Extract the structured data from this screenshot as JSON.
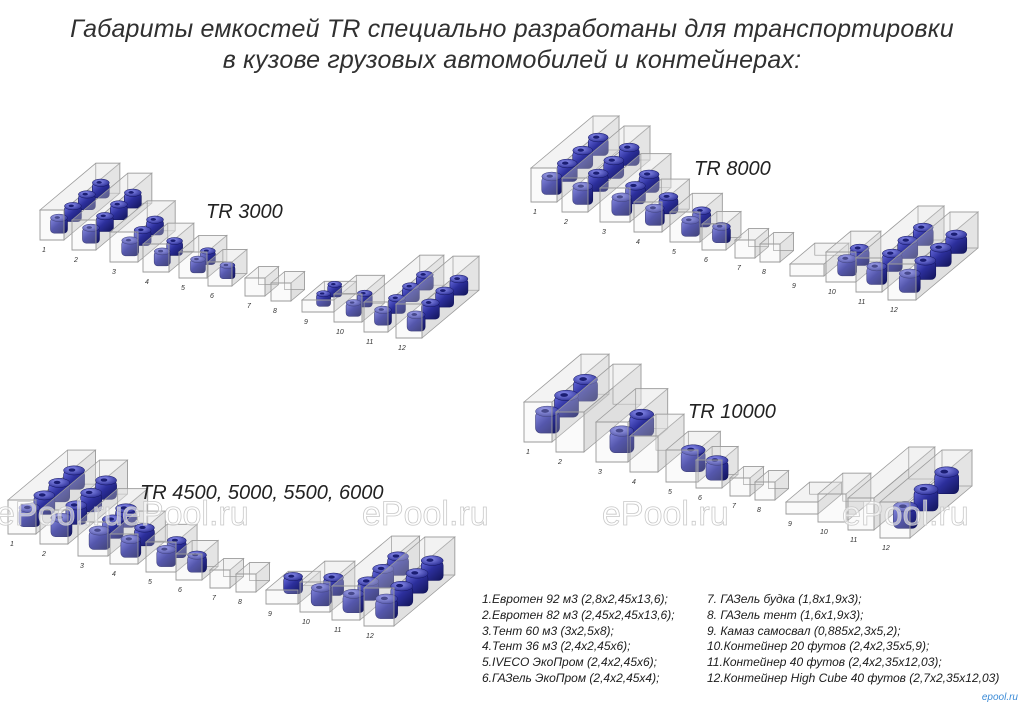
{
  "headline": {
    "line1": "Габариты емкостей TR специально разработаны для транспортировки",
    "line2": "в кузове грузовых автомобилей и контейнерах:"
  },
  "groups": [
    {
      "label": "TR 3000"
    },
    {
      "label": "TR 8000"
    },
    {
      "label": "TR 10000"
    },
    {
      "label": "TR 4500, 5000, 5500, 6000"
    }
  ],
  "vehicle_numbers": [
    "1",
    "2",
    "3",
    "4",
    "5",
    "6",
    "7",
    "8",
    "9",
    "10",
    "11",
    "12"
  ],
  "legend": {
    "left": [
      "1.Евротен 92 м3 (2,8x2,45x13,6);",
      "2.Евротен 82 м3 (2,45x2,45x13,6);",
      "3.Тент 60 м3 (3x2,5x8);",
      "4.Тент 36 м3 (2,4x2,45x6);",
      "5.IVECO ЭкоПром (2,4x2,45x6);",
      "6.ГАЗель ЭкоПром (2,4x2,45x4);"
    ],
    "right": [
      "7.  ГАЗель будка (1,8x1,9x3);",
      "8.  ГАЗель тент (1,6x1,9x3);",
      "9.  Камаз самосвал (0,885x2,3x5,2);",
      "10.Контейнер 20 футов (2,4x2,35x5,9);",
      "11.Контейнер 40 футов (2,4x2,35x12,03);",
      "12.Контейнер High Cube 40 футов (2,7x2,35x12,03)"
    ]
  },
  "watermark": "ePool.ru",
  "corner_mark": "epool.ru",
  "colors": {
    "tank_light": "#5f63d8",
    "tank": "#2c2f9c",
    "tank_dark": "#141660",
    "box_stroke": "#9a9a9a",
    "box_fill": "#dcdcdc"
  }
}
